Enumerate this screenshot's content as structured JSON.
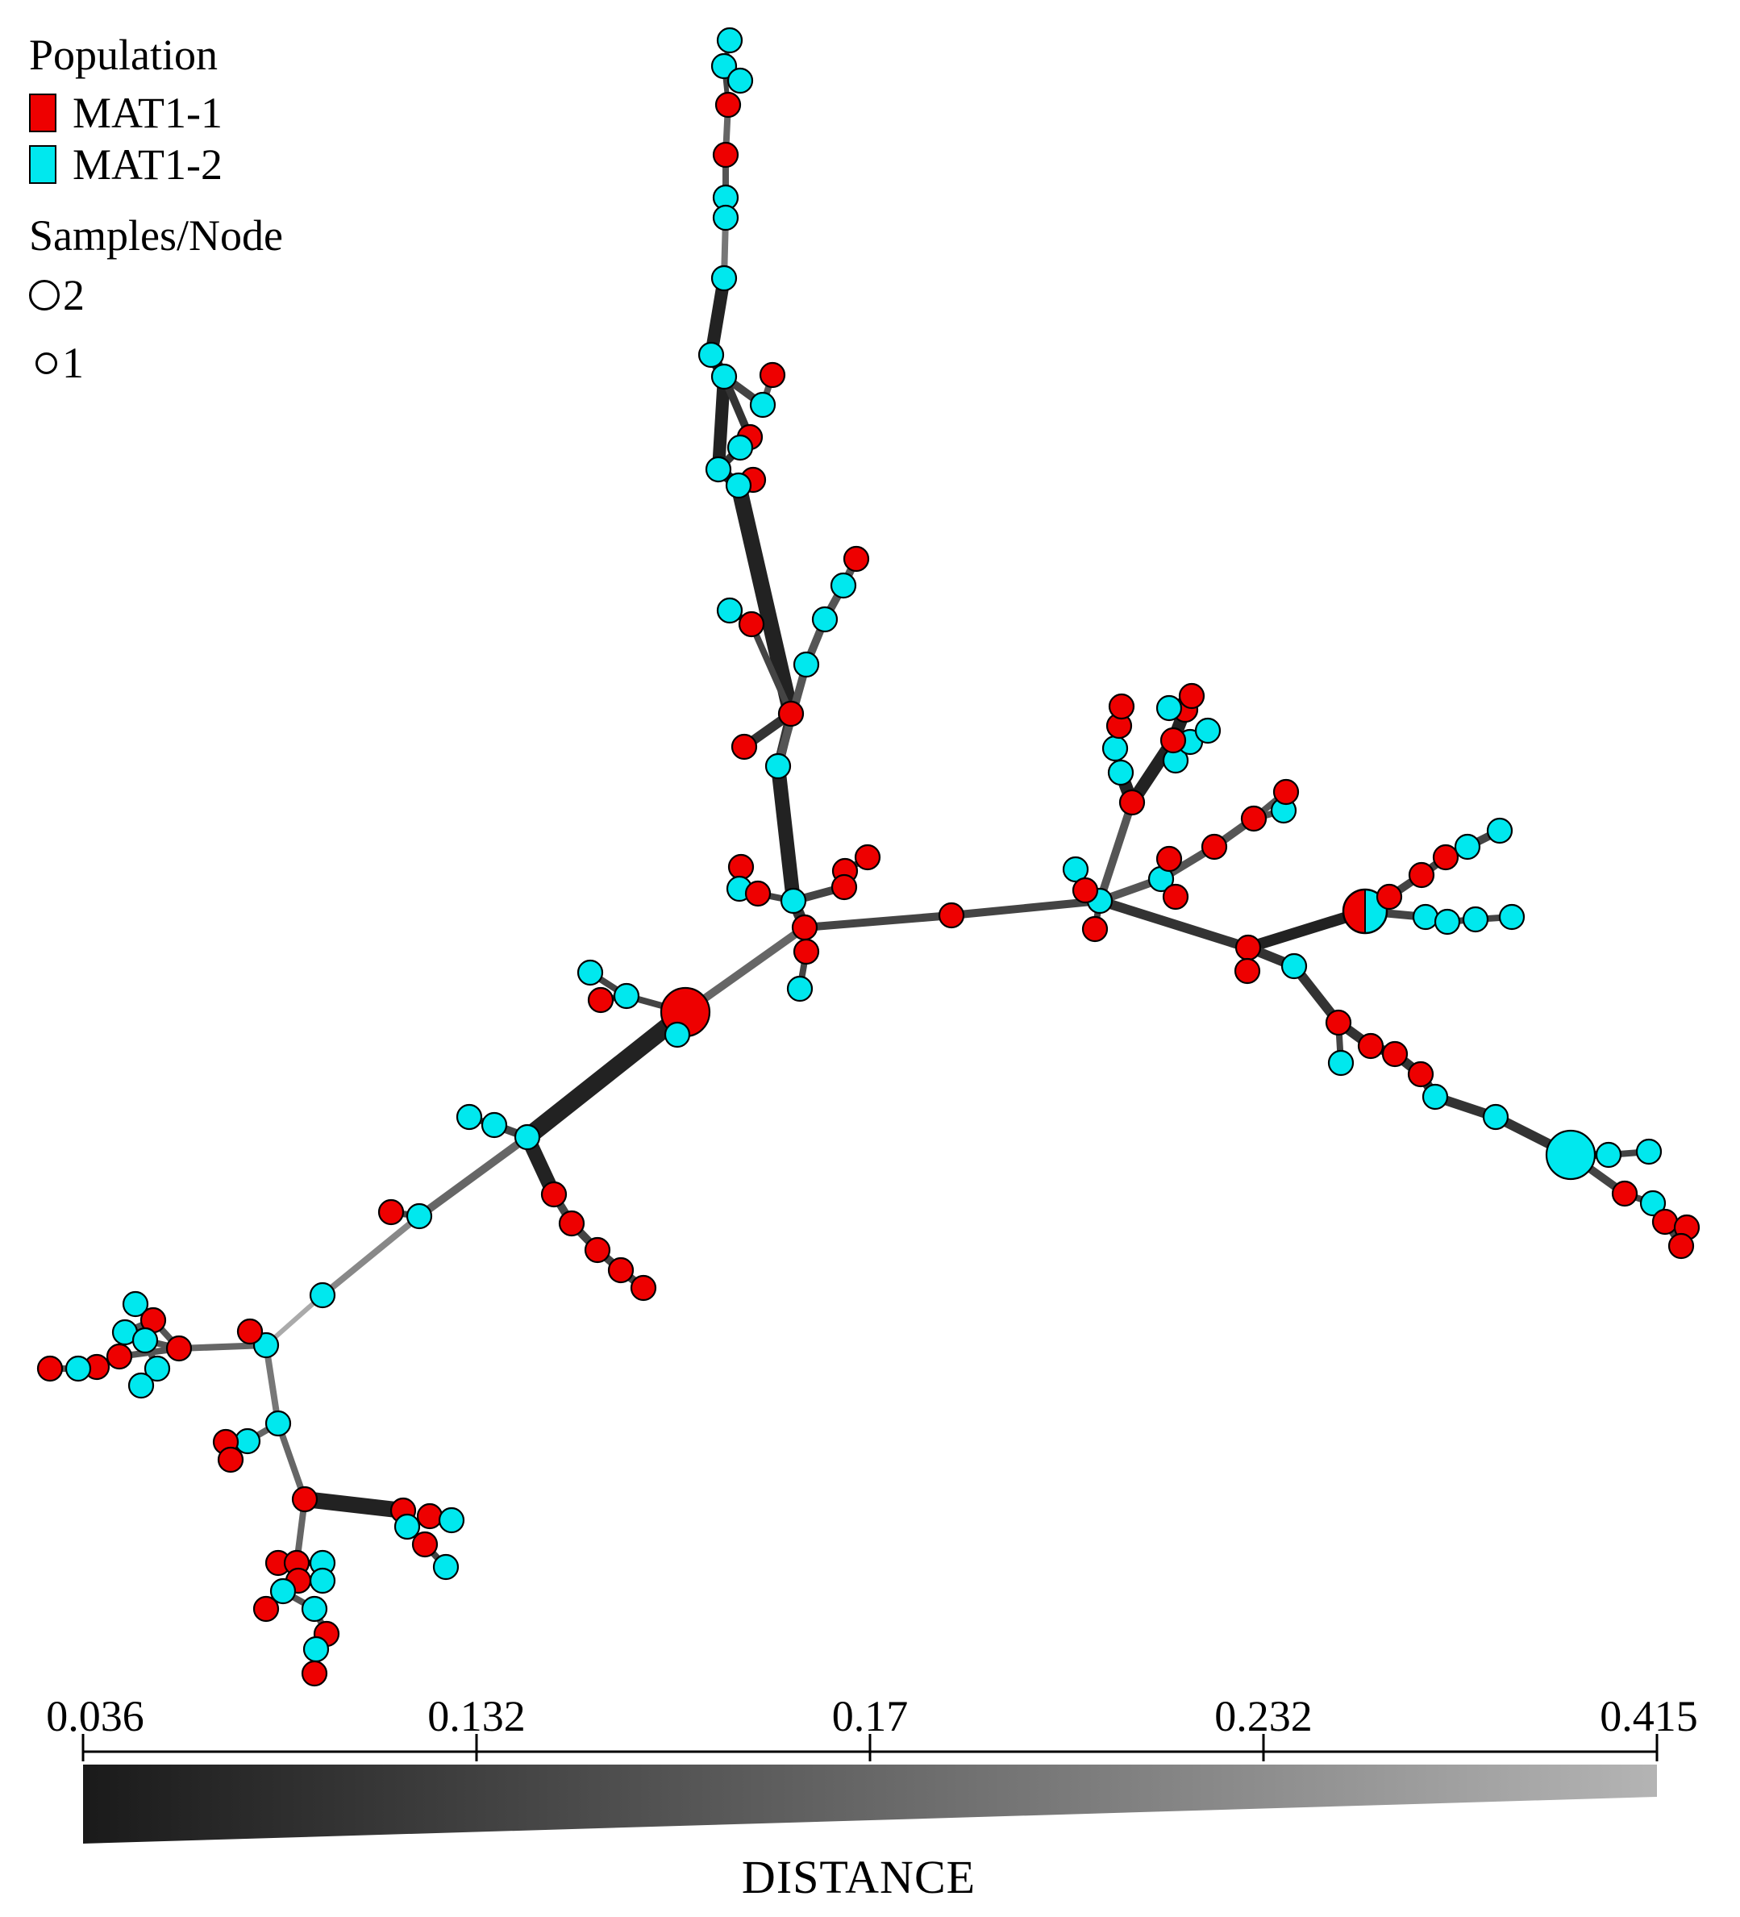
{
  "legend": {
    "population_title": "Population",
    "populations": [
      {
        "label": "MAT1-1",
        "color": "#ee0000"
      },
      {
        "label": "MAT1-2",
        "color": "#00e8ee"
      }
    ],
    "size_title": "Samples/Node",
    "sizes": [
      {
        "label": "2",
        "count": 2
      },
      {
        "label": "1",
        "count": 1
      }
    ]
  },
  "distance_scale": {
    "title": "DISTANCE",
    "min": 0.036,
    "max": 0.415,
    "ticks": [
      "0.036",
      "0.132",
      "0.17",
      "0.232",
      "0.415"
    ],
    "color_dark": "#1a1a1a",
    "color_light": "#b4b4b4"
  }
}
